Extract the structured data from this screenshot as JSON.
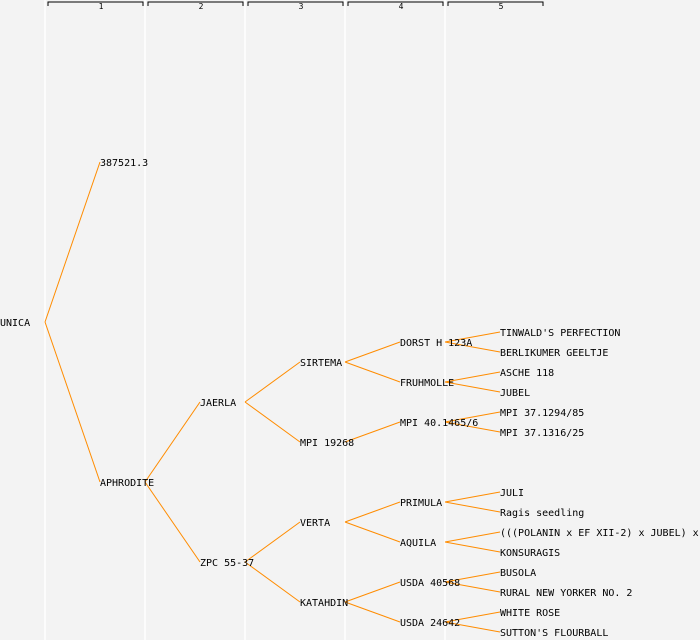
{
  "header": {
    "generations": [
      "1",
      "2",
      "3",
      "4",
      "5"
    ]
  },
  "colors": {
    "edge": "#ff8c00",
    "text": "#000000",
    "highlight": "#0000ff",
    "background": "#f3f3f3",
    "separator": "#ffffff"
  },
  "pedigree": {
    "name": "UNICA",
    "parents": [
      {
        "name": "387521.3",
        "parents": []
      },
      {
        "name": "APHRODITE",
        "parents": [
          {
            "name": "JAERLA",
            "parents": [
              {
                "name": "SIRTEMA",
                "parents": [
                  {
                    "name": "DORST H 123A",
                    "parents": [
                      {
                        "name": "TINWALD'S PERFECTION"
                      },
                      {
                        "name": "BERLIKUMER GEELTJE"
                      }
                    ]
                  },
                  {
                    "name": "FRUHMOLLE",
                    "parents": [
                      {
                        "name": "ASCHE 118"
                      },
                      {
                        "name": "JUBEL"
                      }
                    ]
                  }
                ]
              },
              {
                "name": "MPI 19268",
                "highlight": true,
                "parents": [
                  {
                    "name": "MPI 40.1465/6",
                    "parents": [
                      {
                        "name": "MPI 37.1294/85"
                      },
                      {
                        "name": "MPI 37.1316/25"
                      }
                    ]
                  },
                  null
                ]
              }
            ]
          },
          {
            "name": "ZPC 55-37",
            "parents": [
              {
                "name": "VERTA",
                "parents": [
                  {
                    "name": "PRIMULA",
                    "parents": [
                      {
                        "name": "JULI"
                      },
                      {
                        "name": "Ragis seedling"
                      }
                    ]
                  },
                  {
                    "name": "AQUILA",
                    "parents": [
                      {
                        "name": "(((POLANIN x EF XII-2) x JUBEL) x"
                      },
                      {
                        "name": "KONSURAGIS"
                      }
                    ]
                  }
                ]
              },
              {
                "name": "KATAHDIN",
                "parents": [
                  {
                    "name": "USDA 40568",
                    "parents": [
                      {
                        "name": "BUSOLA"
                      },
                      {
                        "name": "RURAL NEW YORKER NO. 2"
                      }
                    ]
                  },
                  {
                    "name": "USDA 24642",
                    "parents": [
                      {
                        "name": "WHITE ROSE"
                      },
                      {
                        "name": "SUTTON'S FLOURBALL"
                      }
                    ]
                  }
                ]
              }
            ]
          }
        ]
      }
    ]
  }
}
